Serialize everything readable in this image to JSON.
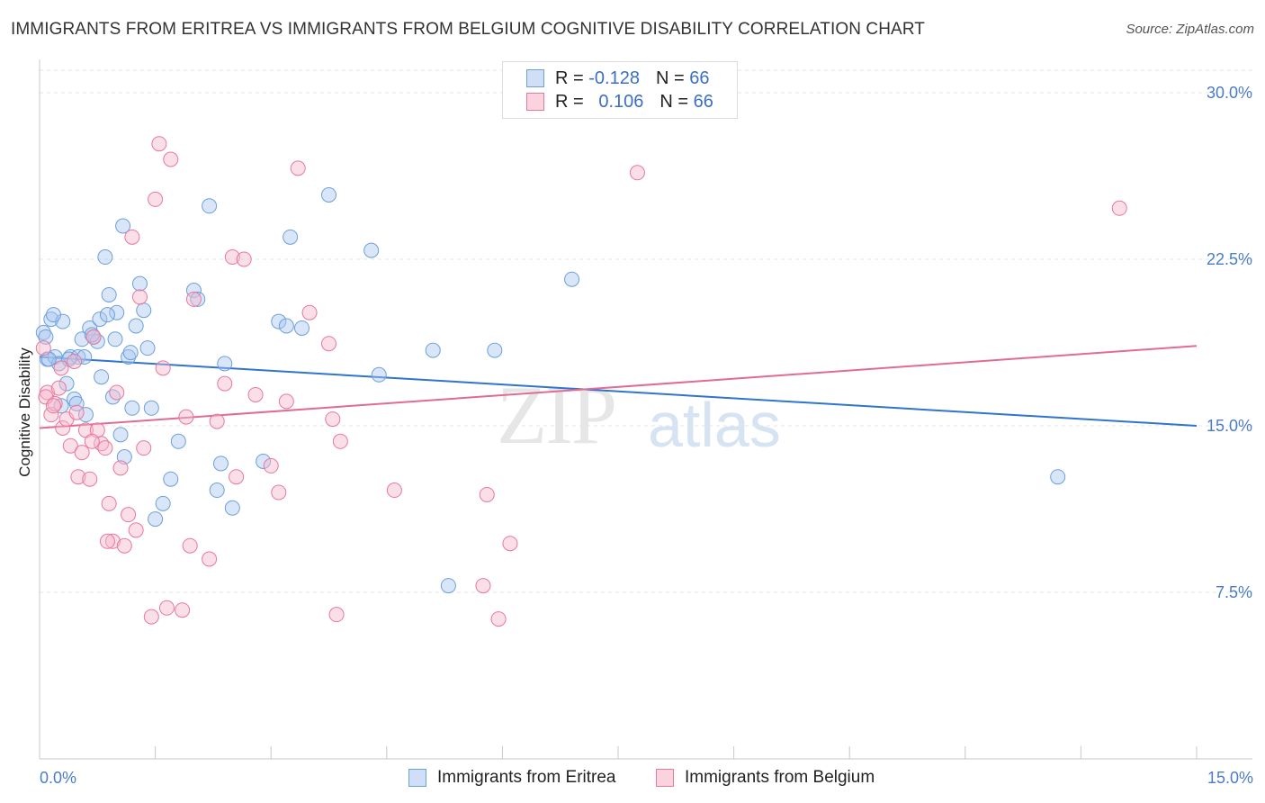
{
  "title": "IMMIGRANTS FROM ERITREA VS IMMIGRANTS FROM BELGIUM COGNITIVE DISABILITY CORRELATION CHART",
  "source": "Source: ZipAtlas.com",
  "watermark": {
    "zip": "ZIP",
    "atlas": "atlas"
  },
  "legend_top": {
    "rows": [
      {
        "r_label": "R =",
        "r_value": "-0.128",
        "n_label": "N =",
        "n_value": "66",
        "color": "#a8c8f0"
      },
      {
        "r_label": "R =",
        "r_value": "0.106",
        "n_label": "N =",
        "n_value": "66",
        "color": "#f6b8cb"
      }
    ]
  },
  "legend_bottom": [
    {
      "label": "Immigrants from Eritrea",
      "color": "#a8c8f0"
    },
    {
      "label": "Immigrants from Belgium",
      "color": "#f6b8cb"
    }
  ],
  "chart_data": {
    "type": "scatter",
    "xlabel": "",
    "ylabel": "Cognitive Disability",
    "xlim": [
      0,
      15
    ],
    "ylim": [
      0,
      31.5
    ],
    "x_tick_labels": [
      "0.0%",
      "15.0%"
    ],
    "y_ticks": [
      7.5,
      15.0,
      22.5,
      30.0
    ],
    "y_tick_labels": [
      "7.5%",
      "15.0%",
      "22.5%",
      "30.0%"
    ],
    "grid": true,
    "legend_position": "top-center",
    "series": [
      {
        "name": "Immigrants from Eritrea",
        "color": "#6e9fdc",
        "fill": "#a8c8f0",
        "trend": {
          "x": [
            0,
            15
          ],
          "y": [
            18.1,
            15.0
          ],
          "color": "#2f74d0"
        },
        "points": [
          [
            0.05,
            19.2
          ],
          [
            0.1,
            18.0
          ],
          [
            0.15,
            19.8
          ],
          [
            0.2,
            18.1
          ],
          [
            0.25,
            17.8
          ],
          [
            0.3,
            19.7
          ],
          [
            0.35,
            16.9
          ],
          [
            0.4,
            18.1
          ],
          [
            0.45,
            16.2
          ],
          [
            0.5,
            18.1
          ],
          [
            0.55,
            18.9
          ],
          [
            0.6,
            15.5
          ],
          [
            0.65,
            19.4
          ],
          [
            0.7,
            19.0
          ],
          [
            0.75,
            18.8
          ],
          [
            0.8,
            17.2
          ],
          [
            0.85,
            22.6
          ],
          [
            0.9,
            20.9
          ],
          [
            0.95,
            16.3
          ],
          [
            1.0,
            20.1
          ],
          [
            1.05,
            14.6
          ],
          [
            1.1,
            13.6
          ],
          [
            1.15,
            18.1
          ],
          [
            1.2,
            15.8
          ],
          [
            1.25,
            19.5
          ],
          [
            1.3,
            21.4
          ],
          [
            1.35,
            20.2
          ],
          [
            1.4,
            18.5
          ],
          [
            1.45,
            15.8
          ],
          [
            1.5,
            10.8
          ],
          [
            1.6,
            11.5
          ],
          [
            1.7,
            12.6
          ],
          [
            1.8,
            14.3
          ],
          [
            2.0,
            21.1
          ],
          [
            2.05,
            20.7
          ],
          [
            2.2,
            24.9
          ],
          [
            2.3,
            12.1
          ],
          [
            2.35,
            13.3
          ],
          [
            2.4,
            17.8
          ],
          [
            2.5,
            11.3
          ],
          [
            2.9,
            13.4
          ],
          [
            3.1,
            19.7
          ],
          [
            3.2,
            19.5
          ],
          [
            3.25,
            23.5
          ],
          [
            3.4,
            19.4
          ],
          [
            3.75,
            25.4
          ],
          [
            4.3,
            22.9
          ],
          [
            4.4,
            17.3
          ],
          [
            5.1,
            18.4
          ],
          [
            5.3,
            7.8
          ],
          [
            5.9,
            18.4
          ],
          [
            6.9,
            21.6
          ],
          [
            13.2,
            12.7
          ],
          [
            0.08,
            19.0
          ],
          [
            0.12,
            18.0
          ],
          [
            0.18,
            20.0
          ],
          [
            0.28,
            15.9
          ],
          [
            0.38,
            18.0
          ],
          [
            0.48,
            16.0
          ],
          [
            0.58,
            18.1
          ],
          [
            0.68,
            19.1
          ],
          [
            0.78,
            19.8
          ],
          [
            0.88,
            20.0
          ],
          [
            0.98,
            18.9
          ],
          [
            1.08,
            24.0
          ],
          [
            1.18,
            18.3
          ]
        ]
      },
      {
        "name": "Immigrants from Belgium",
        "color": "#e8789c",
        "fill": "#f6b8cb",
        "trend": {
          "x": [
            0,
            15
          ],
          "y": [
            14.9,
            18.6
          ],
          "color": "#e06b97"
        },
        "points": [
          [
            0.05,
            18.5
          ],
          [
            0.1,
            16.5
          ],
          [
            0.15,
            15.5
          ],
          [
            0.2,
            16.0
          ],
          [
            0.25,
            16.7
          ],
          [
            0.3,
            14.9
          ],
          [
            0.35,
            15.3
          ],
          [
            0.4,
            14.1
          ],
          [
            0.45,
            17.9
          ],
          [
            0.5,
            12.7
          ],
          [
            0.55,
            13.8
          ],
          [
            0.6,
            14.8
          ],
          [
            0.65,
            12.6
          ],
          [
            0.7,
            19.0
          ],
          [
            0.75,
            14.8
          ],
          [
            0.8,
            14.2
          ],
          [
            0.85,
            14.0
          ],
          [
            0.9,
            11.5
          ],
          [
            0.95,
            9.8
          ],
          [
            1.0,
            16.5
          ],
          [
            1.05,
            13.1
          ],
          [
            1.1,
            9.6
          ],
          [
            1.15,
            11.0
          ],
          [
            1.2,
            23.5
          ],
          [
            1.25,
            10.3
          ],
          [
            1.3,
            20.8
          ],
          [
            1.35,
            14.0
          ],
          [
            1.5,
            25.2
          ],
          [
            1.55,
            27.7
          ],
          [
            1.6,
            17.6
          ],
          [
            1.65,
            6.8
          ],
          [
            1.7,
            27.0
          ],
          [
            1.85,
            6.7
          ],
          [
            1.9,
            15.4
          ],
          [
            1.95,
            9.6
          ],
          [
            2.0,
            20.7
          ],
          [
            2.2,
            9.0
          ],
          [
            2.3,
            15.2
          ],
          [
            2.4,
            16.9
          ],
          [
            2.5,
            22.6
          ],
          [
            2.55,
            12.7
          ],
          [
            2.65,
            22.5
          ],
          [
            2.8,
            16.4
          ],
          [
            3.0,
            13.2
          ],
          [
            3.1,
            12.0
          ],
          [
            3.2,
            16.1
          ],
          [
            3.35,
            26.6
          ],
          [
            3.5,
            20.1
          ],
          [
            3.75,
            18.7
          ],
          [
            3.8,
            15.3
          ],
          [
            3.85,
            6.5
          ],
          [
            3.9,
            14.3
          ],
          [
            4.6,
            12.1
          ],
          [
            5.75,
            7.8
          ],
          [
            5.8,
            11.9
          ],
          [
            5.95,
            6.3
          ],
          [
            6.1,
            9.7
          ],
          [
            7.75,
            26.4
          ],
          [
            14.0,
            24.8
          ],
          [
            0.08,
            16.3
          ],
          [
            0.18,
            15.9
          ],
          [
            0.28,
            17.6
          ],
          [
            0.48,
            15.6
          ],
          [
            0.68,
            14.3
          ],
          [
            0.88,
            9.8
          ],
          [
            1.45,
            6.4
          ]
        ]
      }
    ]
  }
}
